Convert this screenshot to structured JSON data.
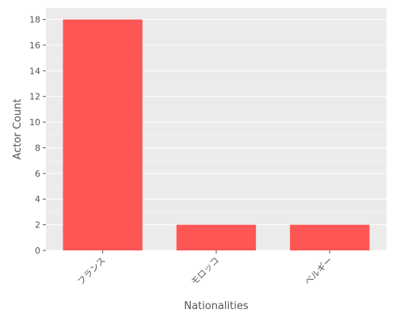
{
  "chart_data": {
    "type": "bar",
    "title": "",
    "xlabel": "Nationalities",
    "ylabel": "Actor Count",
    "categories": [
      "フランス",
      "モロッコ",
      "ベルギー"
    ],
    "values": [
      18,
      2,
      2
    ],
    "ylim": [
      0,
      18.9
    ],
    "yticks": [
      0,
      2,
      4,
      6,
      8,
      10,
      12,
      14,
      16,
      18
    ],
    "grid": true,
    "legend": "none",
    "colors": {
      "bar": "#ff5555",
      "plot_background": "#ebebeb",
      "gridline": "#ffffff",
      "text": "#555555"
    }
  }
}
